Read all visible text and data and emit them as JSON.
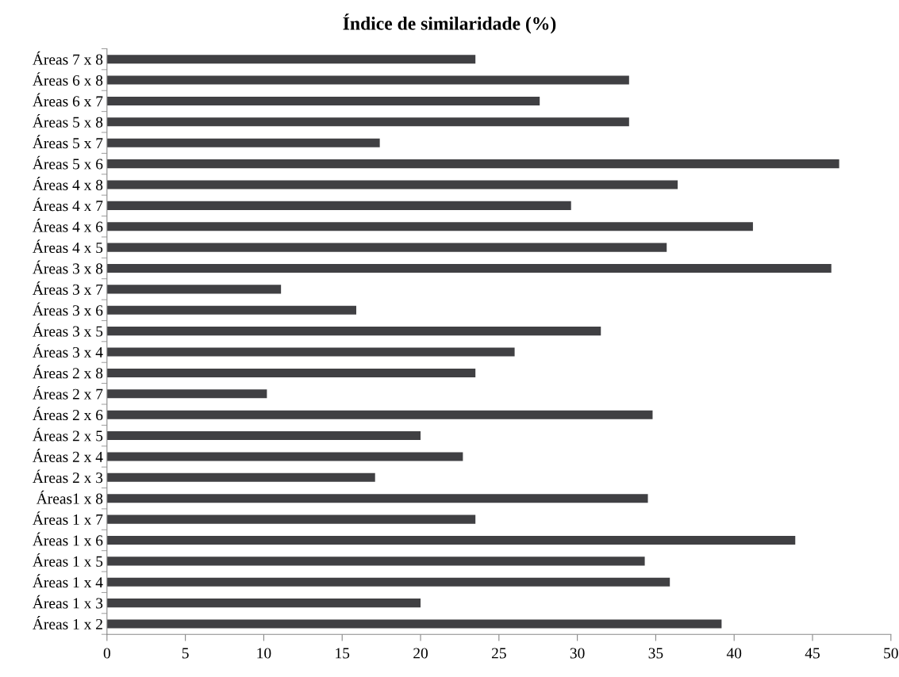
{
  "chart_data": {
    "type": "bar",
    "orientation": "horizontal",
    "title": "Índice de similaridade (%)",
    "categories": [
      "Áreas 7 x 8",
      "Áreas 6 x 8",
      "Áreas 6 x 7",
      "Áreas 5 x 8",
      "Áreas 5 x 7",
      "Áreas 5 x 6",
      "Áreas 4 x 8",
      "Áreas 4 x 7",
      "Áreas 4 x 6",
      "Áreas 4 x 5",
      "Áreas 3 x 8",
      "Áreas 3 x 7",
      "Áreas 3 x 6",
      "Áreas 3 x 5",
      "Áreas 3 x 4",
      "Áreas 2 x 8",
      "Áreas 2 x 7",
      "Áreas 2 x 6",
      "Áreas 2 x 5",
      "Áreas 2 x 4",
      "Áreas 2 x 3",
      "Áreas1 x 8",
      "Áreas 1 x 7",
      "Áreas 1 x 6",
      "Áreas 1 x 5",
      "Áreas 1 x 4",
      "Áreas 1 x 3",
      "Áreas 1 x 2"
    ],
    "values": [
      23.5,
      33.3,
      27.6,
      33.3,
      17.4,
      46.7,
      36.4,
      29.6,
      41.2,
      35.7,
      46.2,
      11.1,
      15.9,
      31.5,
      26.0,
      23.5,
      10.2,
      34.8,
      20.0,
      22.7,
      17.1,
      34.5,
      23.5,
      43.9,
      34.3,
      35.9,
      20.0,
      39.2
    ],
    "color": "#404043",
    "xlim": [
      0,
      50
    ],
    "xticks": [
      0,
      5,
      10,
      15,
      20,
      25,
      30,
      35,
      40,
      45,
      50
    ],
    "grid": false
  }
}
